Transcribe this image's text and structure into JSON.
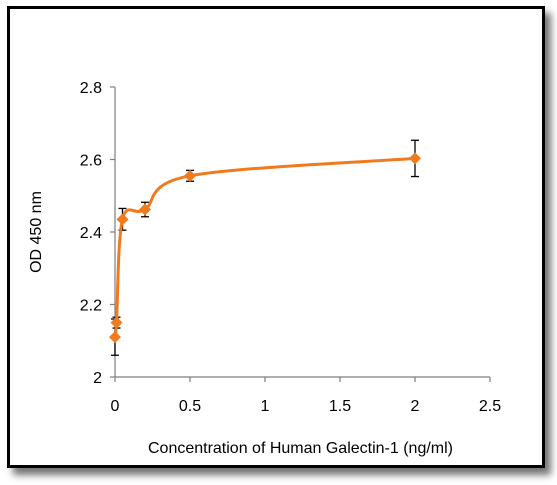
{
  "chart_data": {
    "type": "line",
    "xlabel": "Concentration of Human Galectin-1 (ng/ml)",
    "ylabel": "OD 450 nm",
    "xlim": [
      0,
      2.5
    ],
    "ylim": [
      2.0,
      2.8
    ],
    "x_ticks": [
      0,
      0.5,
      1,
      1.5,
      2,
      2.5
    ],
    "y_ticks": [
      2.0,
      2.2,
      2.4,
      2.6,
      2.8
    ],
    "x_tick_labels": [
      "0",
      "0.5",
      "1",
      "1.5",
      "2",
      "2.5"
    ],
    "y_tick_labels": [
      "2",
      "2.2",
      "2.4",
      "2.6",
      "2.8"
    ],
    "grid": false,
    "legend": "none",
    "series": [
      {
        "x": [
          0.0,
          0.01,
          0.05,
          0.2,
          0.5,
          2.0
        ],
        "y": [
          2.11,
          2.15,
          2.435,
          2.462,
          2.555,
          2.603
        ],
        "error": [
          0.05,
          0.015,
          0.03,
          0.02,
          0.015,
          0.05
        ],
        "color": "#F07A1E",
        "marker": "diamond"
      }
    ]
  }
}
